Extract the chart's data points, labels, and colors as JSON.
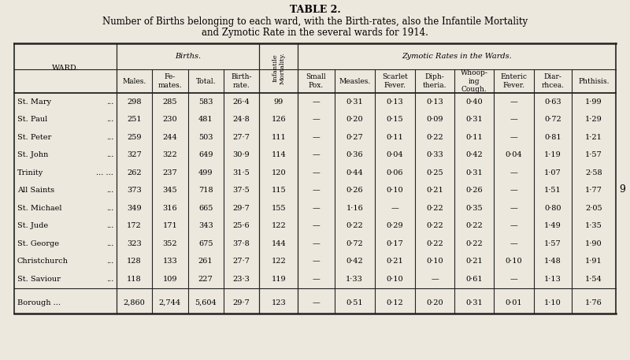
{
  "title1": "TABLE 2.",
  "title2": "Number of Births belonging to each ward, with the Birth-rates, also the Infantile Mortality",
  "title3": "and Zymotic Rate in the several wards for 1914.",
  "bg_color": "#ede8de",
  "ward_header": "WARD.",
  "header_births": "Births.",
  "header_zymotic": "Zymotic Rates in the Wards.",
  "header_infantile": "Infantile\nMortality.",
  "births_sub": [
    "Males.",
    "Fe-\nmates.",
    "Total.",
    "Birth-\nrate."
  ],
  "zymotic_sub": [
    "Small\nPox.",
    "Measles.",
    "Scarlet\nFever.",
    "Diph-\ntheria.",
    "Whoop-\ning\nCough.",
    "Enteric\nFever.",
    "Diar-\nrhcea.",
    "Phthisis."
  ],
  "wards": [
    "St. Mary",
    "St. Paul",
    "St. Peter",
    "St. John",
    "Trinity",
    "All Saints",
    "St. Michael",
    "St. Jude",
    "St. George",
    "Christchurch",
    "St. Saviour"
  ],
  "ward_dots": [
    "...",
    "...",
    "...",
    "...",
    "... ...",
    "...",
    "...",
    "...",
    "...",
    "...",
    "..."
  ],
  "data": [
    [
      298,
      285,
      583,
      "26·4",
      99,
      "—",
      "0·31",
      "0·13",
      "0·13",
      "0·40",
      "—",
      "0·63",
      "1·99"
    ],
    [
      251,
      230,
      481,
      "24·8",
      126,
      "—",
      "0·20",
      "0·15",
      "0·09",
      "0·31",
      "—",
      "0·72",
      "1·29"
    ],
    [
      259,
      244,
      503,
      "27·7",
      111,
      "—",
      "0·27",
      "0·11",
      "0·22",
      "0·11",
      "—",
      "0·81",
      "1·21"
    ],
    [
      327,
      322,
      649,
      "30·9",
      114,
      "—",
      "0·36",
      "0·04",
      "0·33",
      "0·42",
      "0·04",
      "1·19",
      "1·57"
    ],
    [
      262,
      237,
      499,
      "31·5",
      120,
      "—",
      "0·44",
      "0·06",
      "0·25",
      "0·31",
      "—",
      "1·07",
      "2·58"
    ],
    [
      373,
      345,
      718,
      "37·5",
      115,
      "—",
      "0·26",
      "0·10",
      "0·21",
      "0·26",
      "—",
      "1·51",
      "1·77"
    ],
    [
      349,
      316,
      665,
      "29·7",
      155,
      "—",
      "1·16",
      "—",
      "0·22",
      "0·35",
      "—",
      "0·80",
      "2·05"
    ],
    [
      172,
      171,
      343,
      "25·6",
      122,
      "—",
      "0·22",
      "0·29",
      "0·22",
      "0·22",
      "—",
      "1·49",
      "1·35"
    ],
    [
      323,
      352,
      675,
      "37·8",
      144,
      "—",
      "0·72",
      "0·17",
      "0·22",
      "0·22",
      "—",
      "1·57",
      "1·90"
    ],
    [
      128,
      133,
      261,
      "27·7",
      122,
      "—",
      "0·42",
      "0·21",
      "0·10",
      "0·21",
      "0·10",
      "1·48",
      "1·91"
    ],
    [
      118,
      109,
      227,
      "23·3",
      119,
      "—",
      "1·33",
      "0·10",
      "—",
      "0·61",
      "—",
      "1·13",
      "1·54"
    ]
  ],
  "borough_data": [
    "2,860",
    "2,744",
    "5,604",
    "29·7",
    123,
    "—",
    "0·51",
    "0·12",
    "0·20",
    "0·31",
    "0·01",
    "1·10",
    "1·76"
  ],
  "page_num": "9"
}
